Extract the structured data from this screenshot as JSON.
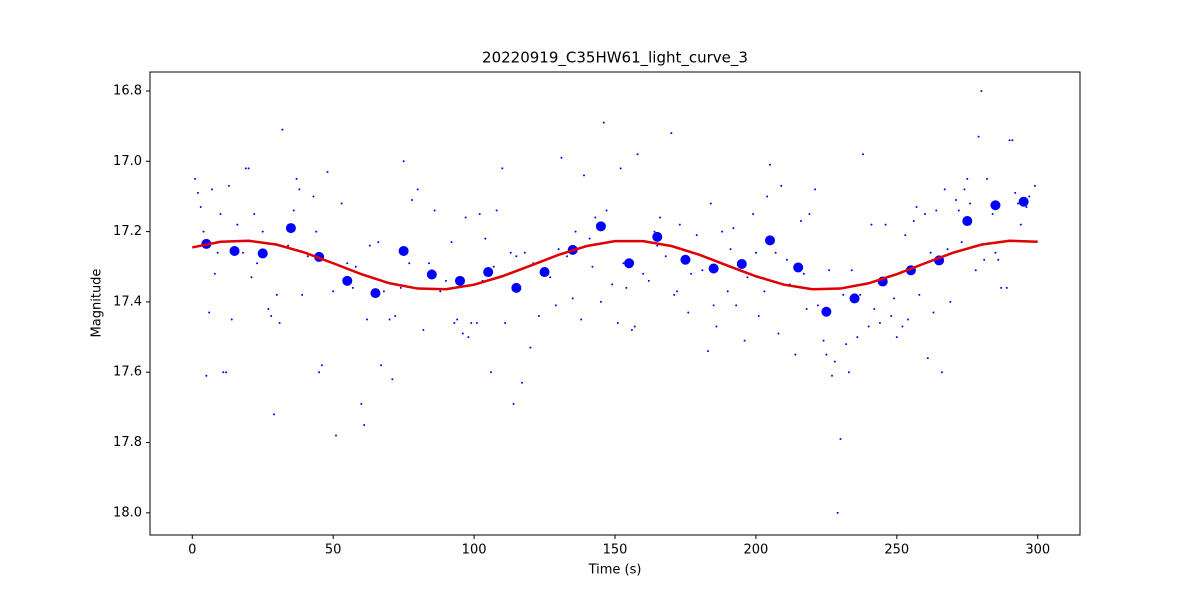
{
  "chart_data": {
    "type": "scatter",
    "title": "20220919_C35HW61_light_curve_3",
    "xlabel": "Time (s)",
    "ylabel": "Magnitude",
    "xlim": [
      -15,
      315
    ],
    "ylim": [
      18.063,
      16.746
    ],
    "xticks": [
      0,
      50,
      100,
      150,
      200,
      250,
      300
    ],
    "yticks": [
      16.8,
      {
        "value": 17,
        "label": "17.0"
      },
      17.2,
      17.4,
      17.6,
      17.8,
      {
        "value": 18,
        "label": "18.0"
      }
    ],
    "series": [
      {
        "marker": "point",
        "color": "#0000ff",
        "x": [
          1,
          2,
          3,
          4,
          5,
          6,
          7,
          8,
          9,
          10,
          11,
          12,
          13,
          14,
          16,
          18,
          19,
          20,
          21,
          22,
          23,
          25,
          27,
          28,
          29,
          30,
          31,
          32,
          34,
          36,
          37,
          38,
          39,
          41,
          43,
          44,
          45,
          46,
          48,
          50,
          51,
          53,
          55,
          57,
          58,
          60,
          61,
          62,
          63,
          66,
          67,
          68,
          70,
          71,
          72,
          74,
          75,
          77,
          78,
          80,
          82,
          84,
          85,
          86,
          88,
          90,
          92,
          93,
          94,
          96,
          97,
          98,
          99,
          101,
          102,
          103,
          104,
          106,
          107,
          108,
          110,
          111,
          113,
          114,
          115,
          117,
          118,
          120,
          121,
          123,
          124,
          127,
          129,
          130,
          131,
          133,
          135,
          136,
          138,
          139,
          141,
          142,
          143,
          145,
          146,
          147,
          149,
          151,
          152,
          153,
          154,
          156,
          157,
          158,
          160,
          162,
          164,
          165,
          166,
          168,
          170,
          171,
          172,
          173,
          176,
          177,
          179,
          181,
          183,
          184,
          185,
          186,
          188,
          190,
          191,
          192,
          193,
          196,
          197,
          199,
          200,
          201,
          203,
          204,
          205,
          207,
          208,
          209,
          211,
          212,
          214,
          216,
          217,
          218,
          219,
          221,
          222,
          224,
          225,
          226,
          227,
          228,
          229,
          230,
          231,
          232,
          233,
          234,
          236,
          237,
          238,
          240,
          241,
          242,
          244,
          246,
          248,
          249,
          250,
          252,
          253,
          254,
          256,
          257,
          258,
          260,
          261,
          262,
          263,
          264,
          266,
          267,
          268,
          269,
          271,
          272,
          273,
          274,
          275,
          276,
          278,
          279,
          280,
          281,
          282,
          284,
          285,
          286,
          287,
          289,
          290,
          291,
          292,
          293,
          294,
          296,
          297,
          299
        ],
        "values": [
          17.05,
          17.09,
          17.13,
          17.2,
          17.61,
          17.43,
          17.08,
          17.32,
          17.26,
          17.15,
          17.6,
          17.6,
          17.07,
          17.45,
          17.18,
          17.26,
          17.02,
          17.02,
          17.33,
          17.15,
          17.29,
          17.2,
          17.42,
          17.44,
          17.72,
          17.38,
          17.46,
          16.91,
          17.24,
          17.14,
          17.05,
          17.08,
          17.38,
          17.27,
          17.1,
          17.2,
          17.6,
          17.58,
          17.03,
          17.37,
          17.78,
          17.12,
          17.29,
          17.36,
          17.3,
          17.69,
          17.75,
          17.45,
          17.24,
          17.23,
          17.58,
          17.37,
          17.45,
          17.62,
          17.44,
          17.36,
          17.0,
          17.29,
          17.11,
          17.08,
          17.48,
          17.29,
          17.31,
          17.14,
          17.37,
          17.34,
          17.23,
          17.46,
          17.45,
          17.49,
          17.16,
          17.5,
          17.46,
          17.46,
          17.15,
          17.34,
          17.22,
          17.6,
          17.3,
          17.14,
          17.02,
          17.46,
          17.26,
          17.69,
          17.27,
          17.63,
          17.26,
          17.53,
          17.29,
          17.44,
          17.31,
          17.33,
          17.41,
          17.25,
          16.99,
          17.27,
          17.39,
          17.2,
          17.45,
          17.04,
          17.22,
          17.3,
          17.16,
          17.4,
          16.89,
          17.14,
          17.35,
          17.46,
          17.02,
          17.29,
          17.36,
          17.48,
          17.47,
          16.98,
          17.32,
          17.34,
          17.2,
          17.24,
          17.16,
          17.27,
          16.92,
          17.38,
          17.37,
          17.18,
          17.43,
          17.32,
          17.21,
          17.31,
          17.54,
          17.12,
          17.41,
          17.47,
          17.2,
          17.37,
          17.25,
          17.19,
          17.41,
          17.51,
          17.33,
          17.15,
          17.26,
          17.44,
          17.37,
          17.1,
          17.01,
          17.26,
          17.49,
          17.07,
          17.28,
          17.35,
          17.55,
          17.17,
          17.32,
          17.42,
          17.15,
          17.08,
          17.41,
          17.51,
          17.55,
          17.31,
          17.61,
          17.57,
          18.0,
          17.79,
          17.38,
          17.52,
          17.6,
          17.31,
          17.5,
          17.38,
          16.98,
          17.47,
          17.18,
          17.42,
          17.46,
          17.18,
          17.44,
          17.39,
          17.5,
          17.47,
          17.21,
          17.45,
          17.17,
          17.13,
          17.38,
          17.15,
          17.56,
          17.26,
          17.43,
          17.14,
          17.6,
          17.08,
          17.25,
          17.4,
          17.11,
          17.14,
          17.23,
          17.08,
          17.05,
          17.12,
          17.31,
          16.93,
          16.8,
          17.28,
          17.05,
          17.15,
          17.26,
          17.28,
          17.36,
          17.36,
          16.94,
          16.94,
          17.09,
          17.12,
          17.18,
          17.13,
          17.1,
          17.07
        ]
      },
      {
        "marker": "circle",
        "color": "#0000ff",
        "x": [
          5,
          15,
          25,
          35,
          45,
          55,
          65,
          75,
          85,
          95,
          105,
          115,
          125,
          135,
          145,
          155,
          165,
          175,
          185,
          195,
          205,
          215,
          225,
          235,
          245,
          255,
          265,
          275,
          285,
          295
        ],
        "values": [
          17.235,
          17.255,
          17.262,
          17.19,
          17.272,
          17.34,
          17.375,
          17.255,
          17.322,
          17.34,
          17.315,
          17.36,
          17.315,
          17.252,
          17.185,
          17.29,
          17.215,
          17.28,
          17.305,
          17.292,
          17.225,
          17.302,
          17.428,
          17.39,
          17.342,
          17.31,
          17.282,
          17.17,
          17.125,
          17.115
        ]
      },
      {
        "marker": "line",
        "color": "#e00000",
        "x": [
          0,
          10,
          20,
          30,
          40,
          50,
          60,
          70,
          80,
          90,
          100,
          110,
          120,
          130,
          140,
          150,
          160,
          170,
          180,
          190,
          200,
          210,
          220,
          230,
          240,
          250,
          260,
          270,
          280,
          290,
          300
        ],
        "values": [
          17.245,
          17.229,
          17.226,
          17.237,
          17.26,
          17.29,
          17.321,
          17.347,
          17.362,
          17.364,
          17.351,
          17.327,
          17.297,
          17.266,
          17.241,
          17.227,
          17.227,
          17.241,
          17.266,
          17.297,
          17.327,
          17.351,
          17.364,
          17.362,
          17.347,
          17.321,
          17.29,
          17.26,
          17.237,
          17.226,
          17.229
        ]
      }
    ]
  }
}
